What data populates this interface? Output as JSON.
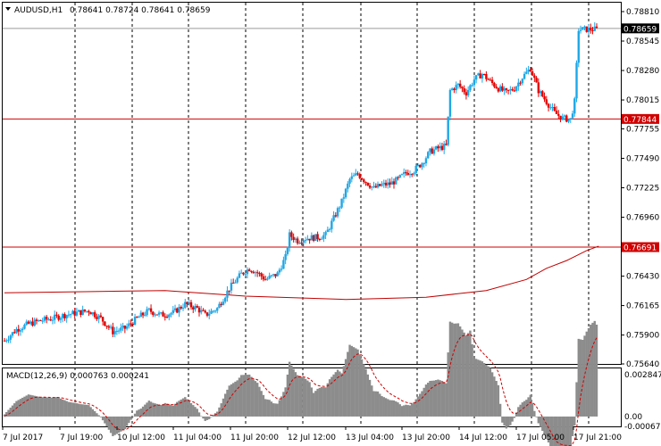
{
  "header": {
    "symbol_timeframe": "AUDUSD,H1",
    "ohlc": "0.78641 0.78724 0.78641 0.78659"
  },
  "macd_header": {
    "label": "MACD(12,26,9) 0.000763 0.000241"
  },
  "colors": {
    "bull": "#1ea7e6",
    "bear": "#e00000",
    "hline": "#d00000",
    "ma": "#c00000",
    "grid": "#000000",
    "macd_hist": "#8c8c8c",
    "signal": "#d00000"
  },
  "chart_data": [
    {
      "type": "candlestick",
      "symbol": "AUDUSD",
      "timeframe": "H1",
      "y_ticks": [
        "0.78810",
        "0.78545",
        "0.78280",
        "0.78015",
        "0.77755",
        "0.77490",
        "0.77225",
        "0.76960",
        "0.76695",
        "0.76430",
        "0.76165",
        "0.75900",
        "0.75640"
      ],
      "ylim": [
        0.7564,
        0.7881
      ],
      "x_ticks": [
        "7 Jul 2017",
        "7 Jul 19:00",
        "10 Jul 12:00",
        "11 Jul 04:00",
        "11 Jul 20:00",
        "12 Jul 12:00",
        "13 Jul 04:00",
        "13 Jul 20:00",
        "14 Jul 12:00",
        "17 Jul 05:00",
        "17 Jul 21:00"
      ],
      "price_labels": {
        "current": "0.78659",
        "line_upper": "0.77844",
        "line_lower": "0.76691"
      },
      "moving_average": [
        [
          0,
          0.7628
        ],
        [
          40,
          0.7629
        ],
        [
          80,
          0.763
        ],
        [
          120,
          0.7625
        ],
        [
          170,
          0.7622
        ],
        [
          210,
          0.7624
        ],
        [
          240,
          0.763
        ],
        [
          260,
          0.764
        ],
        [
          270,
          0.765
        ],
        [
          280,
          0.7657
        ],
        [
          290,
          0.7666
        ],
        [
          296,
          0.767
        ]
      ],
      "price_path": [
        [
          0,
          0.7585
        ],
        [
          6,
          0.7595
        ],
        [
          12,
          0.76
        ],
        [
          18,
          0.7603
        ],
        [
          24,
          0.7605
        ],
        [
          30,
          0.7608
        ],
        [
          36,
          0.761
        ],
        [
          42,
          0.7612
        ],
        [
          48,
          0.7605
        ],
        [
          54,
          0.7593
        ],
        [
          60,
          0.7596
        ],
        [
          66,
          0.7605
        ],
        [
          72,
          0.7612
        ],
        [
          78,
          0.7608
        ],
        [
          84,
          0.761
        ],
        [
          90,
          0.7618
        ],
        [
          96,
          0.7614
        ],
        [
          100,
          0.7608
        ],
        [
          106,
          0.7614
        ],
        [
          112,
          0.7632
        ],
        [
          118,
          0.7645
        ],
        [
          122,
          0.765
        ],
        [
          126,
          0.7646
        ],
        [
          130,
          0.764
        ],
        [
          136,
          0.7645
        ],
        [
          140,
          0.766
        ],
        [
          142,
          0.768
        ],
        [
          146,
          0.7675
        ],
        [
          150,
          0.7677
        ],
        [
          156,
          0.7678
        ],
        [
          160,
          0.768
        ],
        [
          164,
          0.7695
        ],
        [
          168,
          0.771
        ],
        [
          172,
          0.773
        ],
        [
          176,
          0.7735
        ],
        [
          180,
          0.7728
        ],
        [
          184,
          0.7722
        ],
        [
          188,
          0.7725
        ],
        [
          192,
          0.7726
        ],
        [
          196,
          0.773
        ],
        [
          200,
          0.7736
        ],
        [
          204,
          0.7738
        ],
        [
          208,
          0.7745
        ],
        [
          212,
          0.7755
        ],
        [
          216,
          0.7758
        ],
        [
          220,
          0.776
        ],
        [
          222,
          0.781
        ],
        [
          226,
          0.7815
        ],
        [
          230,
          0.7808
        ],
        [
          234,
          0.782
        ],
        [
          238,
          0.7825
        ],
        [
          242,
          0.7818
        ],
        [
          246,
          0.7812
        ],
        [
          250,
          0.7808
        ],
        [
          254,
          0.7812
        ],
        [
          258,
          0.7822
        ],
        [
          262,
          0.783
        ],
        [
          266,
          0.781
        ],
        [
          270,
          0.78
        ],
        [
          274,
          0.779
        ],
        [
          278,
          0.7785
        ],
        [
          282,
          0.7784
        ],
        [
          284,
          0.78
        ],
        [
          286,
          0.7865
        ]
      ]
    },
    {
      "type": "bar",
      "name": "MACD(12,26,9)",
      "y_ticks": [
        "0.002847",
        "0.00",
        "-0.00067"
      ],
      "ylim": [
        -0.00067,
        0.002847
      ],
      "main": 0.000763,
      "signal": 0.000241
    }
  ]
}
